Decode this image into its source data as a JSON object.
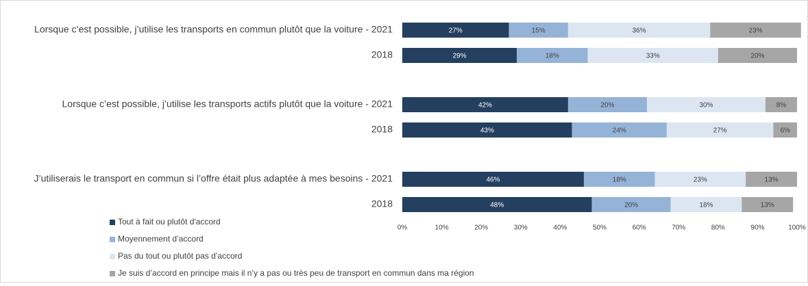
{
  "chart_data": {
    "type": "stacked-barh",
    "categories": [
      "Lorsque c’est possible, j’utilise les transports en commun plutôt que la voiture - 2021",
      "2018",
      "Lorsque c’est possible, j’utilise les transports actifs plutôt que la voiture - 2021",
      "2018",
      "J’utiliserais le transport en commun si l’offre était plus adaptée à mes besoins - 2021",
      "2018"
    ],
    "series": [
      {
        "name": "Tout à fait ou plutôt d'accord",
        "color": "#243f60",
        "label_color": "#ffffff",
        "values": [
          27,
          29,
          42,
          43,
          46,
          48
        ],
        "value_labels": [
          "27%",
          "29%",
          "42%",
          "43%",
          "46%",
          "48%"
        ]
      },
      {
        "name": "Moyennement d’accord",
        "color": "#95b3d7",
        "label_color": "#404040",
        "values": [
          15,
          18,
          20,
          24,
          18,
          20
        ],
        "value_labels": [
          "15%",
          "18%",
          "20%",
          "24%",
          "18%",
          "20%"
        ]
      },
      {
        "name": "Pas du tout ou plutôt pas d’accord",
        "color": "#dce6f2",
        "label_color": "#404040",
        "values": [
          36,
          33,
          30,
          27,
          23,
          18
        ],
        "value_labels": [
          "36%",
          "33%",
          "30%",
          "27%",
          "23%",
          "18%"
        ]
      },
      {
        "name": "Je suis d’accord en principe mais il n’y a pas ou très peu de transport en commun dans ma région",
        "color": "#a6a6a6",
        "label_color": "#404040",
        "values": [
          23,
          20,
          8,
          6,
          13,
          13
        ],
        "value_labels": [
          "23%",
          "20%",
          "8%",
          "6%",
          "13%",
          "13%"
        ]
      }
    ],
    "xlim": [
      0,
      100
    ],
    "xticks": [
      {
        "value": 0,
        "label": "0%"
      },
      {
        "value": 10,
        "label": "10%"
      },
      {
        "value": 20,
        "label": "20%"
      },
      {
        "value": 30,
        "label": "30%"
      },
      {
        "value": 40,
        "label": "40%"
      },
      {
        "value": 50,
        "label": "50%"
      },
      {
        "value": 60,
        "label": "60%"
      },
      {
        "value": 70,
        "label": "70%"
      },
      {
        "value": 80,
        "label": "80%"
      },
      {
        "value": 90,
        "label": "90%"
      },
      {
        "value": 100,
        "label": "100%"
      }
    ]
  }
}
